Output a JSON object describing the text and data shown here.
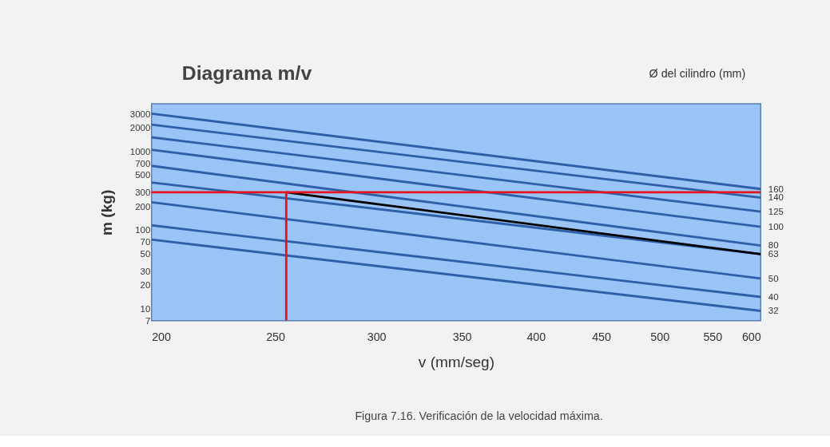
{
  "chart_data": {
    "type": "line",
    "title": "Diagrama    m/v",
    "xlabel": "v (mm/seg)",
    "ylabel": "m (kg)",
    "legend_title": "Ø del cilindro (mm)",
    "annotations": [
      "Figura 7.16. Verificación de la velocidad máxima."
    ],
    "log": "xy",
    "xlim": [
      200,
      600
    ],
    "ylim": [
      7,
      4000
    ],
    "xticks": [
      200,
      250,
      300,
      350,
      400,
      450,
      500,
      550,
      600
    ],
    "yticks": [
      7,
      10,
      20,
      30,
      50,
      70,
      100,
      200,
      300,
      500,
      700,
      1000,
      2000,
      3000
    ],
    "series": [
      {
        "name": "160",
        "color": "#2f5fa8",
        "x": [
          200,
          600
        ],
        "values": [
          3000,
          330
        ]
      },
      {
        "name": "140",
        "color": "#2f5fa8",
        "x": [
          200,
          600
        ],
        "values": [
          2170,
          256
        ]
      },
      {
        "name": "125",
        "color": "#2f5fa8",
        "x": [
          200,
          600
        ],
        "values": [
          1500,
          170
        ]
      },
      {
        "name": "100",
        "color": "#2f5fa8",
        "x": [
          200,
          600
        ],
        "values": [
          1040,
          109
        ]
      },
      {
        "name": "80",
        "color": "#2f5fa8",
        "x": [
          200,
          600
        ],
        "values": [
          650,
          63
        ]
      },
      {
        "name": "63",
        "color": "#2f5fa8",
        "x": [
          200,
          600
        ],
        "values": [
          400,
          49
        ]
      },
      {
        "name": "50",
        "color": "#2f5fa8",
        "x": [
          200,
          600
        ],
        "values": [
          224,
          24
        ]
      },
      {
        "name": "40",
        "color": "#2f5fa8",
        "x": [
          200,
          600
        ],
        "values": [
          114,
          14
        ]
      },
      {
        "name": "32",
        "color": "#2f5fa8",
        "x": [
          200,
          600
        ],
        "values": [
          75,
          9.3
        ]
      },
      {
        "color": "#000000",
        "x": [
          255,
          600
        ],
        "values": [
          300,
          49
        ]
      },
      {
        "color": "#e8141c",
        "x": [
          255,
          255
        ],
        "values": [
          7,
          300
        ]
      }
    ],
    "ref_lines": [
      {
        "axis": "y",
        "value": 300,
        "color": "#e8141c"
      }
    ],
    "grid": false
  }
}
